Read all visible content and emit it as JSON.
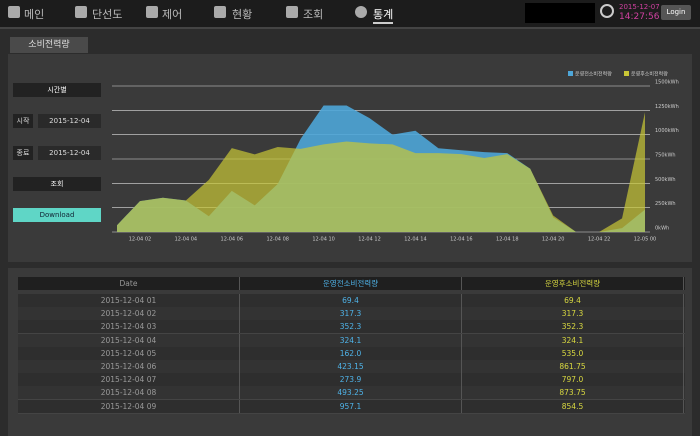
{
  "nav": {
    "items": [
      "메인",
      "단선도",
      "제어",
      "현황",
      "조회",
      "통계"
    ],
    "date": "2015-12-07",
    "time": "14:27:56",
    "login": "Login"
  },
  "tab": "소비전력량",
  "controls": {
    "period": "시간별",
    "start_label": "시작",
    "start_date": "2015-12-04",
    "end_label": "종료",
    "end_date": "2015-12-04",
    "search": "조회",
    "download": "Download"
  },
  "chart_data": {
    "type": "area",
    "categories": [
      null,
      "12-04 02",
      null,
      "12-04 04",
      null,
      "12-04 06",
      null,
      "12-04 08",
      null,
      "12-04 10",
      null,
      "12-04 12",
      null,
      "12-04 14",
      null,
      "12-04 16",
      null,
      "12-04 18",
      null,
      "12-04 20",
      null,
      "12-04 22",
      null,
      "12-05 00"
    ],
    "series": [
      {
        "name": "운영전소비전력량",
        "color": "#4ea6d8",
        "values": [
          69.4,
          317.3,
          352.3,
          324.1,
          162.0,
          423.15,
          273.9,
          493.25,
          957.1,
          1300,
          1300,
          1170,
          1000,
          1040,
          860,
          840,
          820,
          810,
          650,
          150,
          0,
          0,
          40,
          230
        ]
      },
      {
        "name": "운영후소비전력량",
        "color": "#c9c736",
        "values": [
          69.4,
          317.3,
          352.3,
          324.1,
          535.0,
          861.75,
          797.0,
          873.75,
          854.5,
          900,
          930,
          910,
          900,
          810,
          810,
          800,
          760,
          800,
          650,
          170,
          0,
          0,
          140,
          1230
        ]
      }
    ],
    "ylim": [
      0,
      1500
    ],
    "yticks": [
      {
        "value": 0,
        "label": "0kWh"
      },
      {
        "value": 250,
        "label": "250kWh"
      },
      {
        "value": 500,
        "label": "500kWh"
      },
      {
        "value": 750,
        "label": "750kWh"
      },
      {
        "value": 1000,
        "label": "1000kWh"
      },
      {
        "value": 1250,
        "label": "1250kWh"
      },
      {
        "value": 1500,
        "label": "1500kWh"
      }
    ],
    "grid": true,
    "legend": "top-right"
  },
  "table": {
    "header": [
      "Date",
      "운영전소비전력량",
      "운영후소비전력량"
    ],
    "rows": [
      [
        "2015-12-04 01",
        "69.4",
        "69.4"
      ],
      [
        "2015-12-04 02",
        "317.3",
        "317.3"
      ],
      [
        "2015-12-04 03",
        "352.3",
        "352.3"
      ],
      [
        "2015-12-04 04",
        "324.1",
        "324.1"
      ],
      [
        "2015-12-04 05",
        "162.0",
        "535.0"
      ],
      [
        "2015-12-04 06",
        "423.15",
        "861.75"
      ],
      [
        "2015-12-04 07",
        "273.9",
        "797.0"
      ],
      [
        "2015-12-04 08",
        "493.25",
        "873.75"
      ],
      [
        "2015-12-04 09",
        "957.1",
        "854.5"
      ]
    ]
  }
}
